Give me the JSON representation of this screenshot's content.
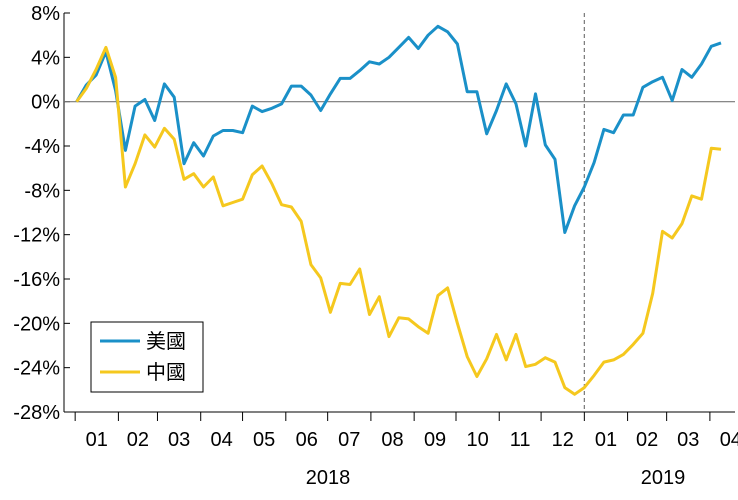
{
  "chart_data": {
    "type": "line",
    "title": "",
    "xlabel": "",
    "ylabel": "",
    "ylim": [
      -28,
      8
    ],
    "yticks": [
      8,
      4,
      0,
      -4,
      -8,
      -12,
      -16,
      -20,
      -24,
      -28
    ],
    "ytick_labels": [
      "8%",
      "4%",
      "0%",
      "-4%",
      "-8%",
      "-12%",
      "-16%",
      "-20%",
      "-24%",
      "-28%"
    ],
    "month_labels": [
      "01",
      "02",
      "03",
      "04",
      "05",
      "06",
      "07",
      "08",
      "09",
      "10",
      "11",
      "12",
      "01",
      "02",
      "03",
      "04"
    ],
    "year_labels": [
      "2018",
      "2019"
    ],
    "divider": "2019-01",
    "legend_position": "bottom-left",
    "series": [
      {
        "name": "美國",
        "color": "#1a90c8",
        "points": [
          [
            "2018-01-02",
            0.0
          ],
          [
            "2018-01-09",
            1.5
          ],
          [
            "2018-01-16",
            2.4
          ],
          [
            "2018-01-23",
            4.5
          ],
          [
            "2018-01-30",
            1.0
          ],
          [
            "2018-02-06",
            -4.4
          ],
          [
            "2018-02-13",
            -0.4
          ],
          [
            "2018-02-20",
            0.2
          ],
          [
            "2018-02-27",
            -1.7
          ],
          [
            "2018-03-06",
            1.6
          ],
          [
            "2018-03-13",
            0.4
          ],
          [
            "2018-03-20",
            -5.6
          ],
          [
            "2018-03-27",
            -3.7
          ],
          [
            "2018-04-03",
            -4.9
          ],
          [
            "2018-04-10",
            -3.1
          ],
          [
            "2018-04-17",
            -2.6
          ],
          [
            "2018-04-24",
            -2.6
          ],
          [
            "2018-05-01",
            -2.8
          ],
          [
            "2018-05-08",
            -0.4
          ],
          [
            "2018-05-15",
            -0.9
          ],
          [
            "2018-05-22",
            -0.6
          ],
          [
            "2018-05-29",
            -0.2
          ],
          [
            "2018-06-05",
            1.4
          ],
          [
            "2018-06-12",
            1.4
          ],
          [
            "2018-06-19",
            0.6
          ],
          [
            "2018-06-26",
            -0.8
          ],
          [
            "2018-07-03",
            0.7
          ],
          [
            "2018-07-10",
            2.1
          ],
          [
            "2018-07-17",
            2.1
          ],
          [
            "2018-07-24",
            2.8
          ],
          [
            "2018-07-31",
            3.6
          ],
          [
            "2018-08-07",
            3.4
          ],
          [
            "2018-08-14",
            4.0
          ],
          [
            "2018-08-21",
            4.9
          ],
          [
            "2018-08-28",
            5.8
          ],
          [
            "2018-09-04",
            4.8
          ],
          [
            "2018-09-11",
            6.0
          ],
          [
            "2018-09-18",
            6.8
          ],
          [
            "2018-09-25",
            6.3
          ],
          [
            "2018-10-02",
            5.2
          ],
          [
            "2018-10-09",
            0.9
          ],
          [
            "2018-10-16",
            0.9
          ],
          [
            "2018-10-23",
            -2.9
          ],
          [
            "2018-10-30",
            -0.8
          ],
          [
            "2018-11-06",
            1.6
          ],
          [
            "2018-11-13",
            -0.2
          ],
          [
            "2018-11-20",
            -4.0
          ],
          [
            "2018-11-27",
            0.7
          ],
          [
            "2018-12-04",
            -3.9
          ],
          [
            "2018-12-11",
            -5.2
          ],
          [
            "2018-12-18",
            -11.8
          ],
          [
            "2018-12-25",
            -9.4
          ],
          [
            "2019-01-01",
            -7.7
          ],
          [
            "2019-01-08",
            -5.5
          ],
          [
            "2019-01-15",
            -2.5
          ],
          [
            "2019-01-22",
            -2.8
          ],
          [
            "2019-01-29",
            -1.2
          ],
          [
            "2019-02-05",
            -1.2
          ],
          [
            "2019-02-12",
            1.3
          ],
          [
            "2019-02-19",
            1.8
          ],
          [
            "2019-02-26",
            2.2
          ],
          [
            "2019-03-05",
            0.1
          ],
          [
            "2019-03-12",
            2.9
          ],
          [
            "2019-03-19",
            2.2
          ],
          [
            "2019-03-26",
            3.4
          ],
          [
            "2019-04-02",
            5.0
          ],
          [
            "2019-04-09",
            5.3
          ]
        ]
      },
      {
        "name": "中國",
        "color": "#f5c81e",
        "points": [
          [
            "2018-01-02",
            0.0
          ],
          [
            "2018-01-09",
            1.2
          ],
          [
            "2018-01-16",
            2.9
          ],
          [
            "2018-01-23",
            4.9
          ],
          [
            "2018-01-30",
            2.2
          ],
          [
            "2018-02-06",
            -7.7
          ],
          [
            "2018-02-13",
            -5.6
          ],
          [
            "2018-02-20",
            -3.0
          ],
          [
            "2018-02-27",
            -4.1
          ],
          [
            "2018-03-06",
            -2.4
          ],
          [
            "2018-03-13",
            -3.4
          ],
          [
            "2018-03-20",
            -7.0
          ],
          [
            "2018-03-27",
            -6.5
          ],
          [
            "2018-04-03",
            -7.7
          ],
          [
            "2018-04-10",
            -6.8
          ],
          [
            "2018-04-17",
            -9.4
          ],
          [
            "2018-04-24",
            -9.1
          ],
          [
            "2018-05-01",
            -8.8
          ],
          [
            "2018-05-08",
            -6.6
          ],
          [
            "2018-05-15",
            -5.8
          ],
          [
            "2018-05-22",
            -7.4
          ],
          [
            "2018-05-29",
            -9.3
          ],
          [
            "2018-06-05",
            -9.5
          ],
          [
            "2018-06-12",
            -10.8
          ],
          [
            "2018-06-19",
            -14.7
          ],
          [
            "2018-06-26",
            -15.9
          ],
          [
            "2018-07-03",
            -19.0
          ],
          [
            "2018-07-10",
            -16.4
          ],
          [
            "2018-07-17",
            -16.5
          ],
          [
            "2018-07-24",
            -15.1
          ],
          [
            "2018-07-31",
            -19.2
          ],
          [
            "2018-08-07",
            -17.6
          ],
          [
            "2018-08-14",
            -21.2
          ],
          [
            "2018-08-21",
            -19.5
          ],
          [
            "2018-08-28",
            -19.6
          ],
          [
            "2018-09-04",
            -20.3
          ],
          [
            "2018-09-11",
            -20.9
          ],
          [
            "2018-09-18",
            -17.5
          ],
          [
            "2018-09-25",
            -16.8
          ],
          [
            "2018-10-02",
            -20.0
          ],
          [
            "2018-10-09",
            -23.0
          ],
          [
            "2018-10-16",
            -24.8
          ],
          [
            "2018-10-23",
            -23.2
          ],
          [
            "2018-10-30",
            -21.0
          ],
          [
            "2018-11-06",
            -23.3
          ],
          [
            "2018-11-13",
            -21.0
          ],
          [
            "2018-11-20",
            -23.9
          ],
          [
            "2018-11-27",
            -23.7
          ],
          [
            "2018-12-04",
            -23.1
          ],
          [
            "2018-12-11",
            -23.5
          ],
          [
            "2018-12-18",
            -25.8
          ],
          [
            "2018-12-25",
            -26.4
          ],
          [
            "2019-01-01",
            -25.8
          ],
          [
            "2019-01-08",
            -24.7
          ],
          [
            "2019-01-15",
            -23.5
          ],
          [
            "2019-01-22",
            -23.3
          ],
          [
            "2019-01-29",
            -22.8
          ],
          [
            "2019-02-05",
            -21.9
          ],
          [
            "2019-02-12",
            -20.9
          ],
          [
            "2019-02-19",
            -17.3
          ],
          [
            "2019-02-26",
            -11.7
          ],
          [
            "2019-03-05",
            -12.3
          ],
          [
            "2019-03-12",
            -11.0
          ],
          [
            "2019-03-19",
            -8.5
          ],
          [
            "2019-03-26",
            -8.8
          ],
          [
            "2019-04-02",
            -4.2
          ],
          [
            "2019-04-09",
            -4.3
          ]
        ]
      }
    ]
  }
}
